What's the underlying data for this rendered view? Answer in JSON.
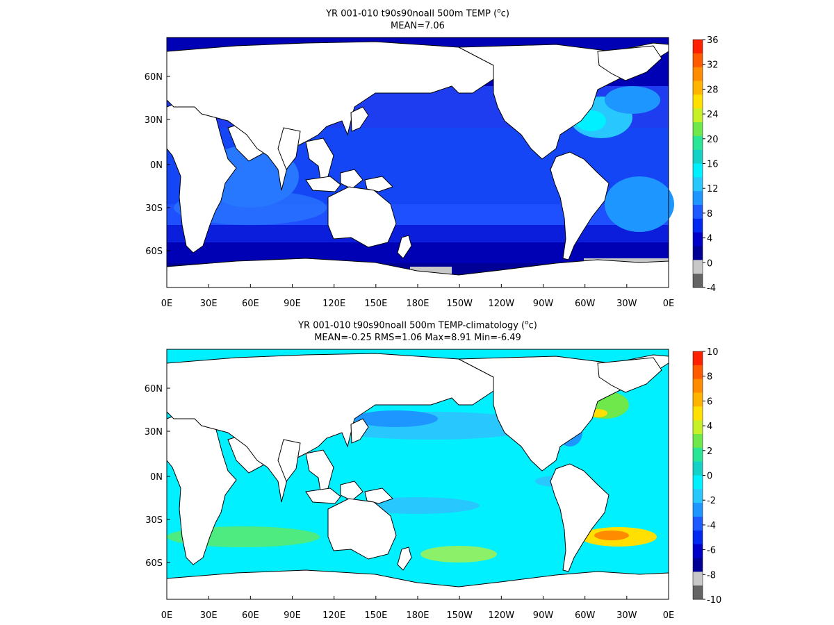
{
  "panels": [
    {
      "title_main": "YR 001-010 t90s90noall 500m TEMP (",
      "title_sup": "o",
      "title_end": "c)",
      "stats": "MEAN=7.06",
      "x_ticks": [
        "0E",
        "30E",
        "60E",
        "90E",
        "120E",
        "150E",
        "180E",
        "150W",
        "120W",
        "90W",
        "60W",
        "30W",
        "0E"
      ],
      "y_ticks": [
        "60N",
        "30N",
        "0N",
        "30S",
        "60S"
      ],
      "colorbar": {
        "labels": [
          "36",
          "32",
          "28",
          "24",
          "20",
          "16",
          "12",
          "8",
          "4",
          "0",
          "-4"
        ],
        "colors": [
          "#ff2000",
          "#ff5a00",
          "#ff8c00",
          "#ffb400",
          "#ffe000",
          "#c8f028",
          "#6ee84a",
          "#28e696",
          "#14d2c8",
          "#00f0ff",
          "#28c8ff",
          "#1e96ff",
          "#1e5aff",
          "#0028f0",
          "#0000c8",
          "#000096",
          "#c8c8c8",
          "#646464"
        ]
      }
    },
    {
      "title_main": "YR 001-010 t90s90noall 500m TEMP-climatology (",
      "title_sup": "o",
      "title_end": "c)",
      "stats": "MEAN=-0.25   RMS=1.06   Max=8.91   Min=-6.49",
      "x_ticks": [
        "0E",
        "30E",
        "60E",
        "90E",
        "120E",
        "150E",
        "180E",
        "150W",
        "120W",
        "90W",
        "60W",
        "30W",
        "0E"
      ],
      "y_ticks": [
        "60N",
        "30N",
        "0N",
        "30S",
        "60S"
      ],
      "colorbar": {
        "labels": [
          "10",
          "8",
          "6",
          "4",
          "2",
          "0",
          "-2",
          "-4",
          "-6",
          "-8",
          "-10"
        ],
        "colors": [
          "#ff2000",
          "#ff5a00",
          "#ff8c00",
          "#ffb400",
          "#ffe000",
          "#c8f028",
          "#6ee84a",
          "#28e696",
          "#14d2c8",
          "#00f0ff",
          "#28c8ff",
          "#1e96ff",
          "#1e5aff",
          "#0028f0",
          "#0000c8",
          "#000096",
          "#c8c8c8",
          "#646464"
        ]
      }
    }
  ]
}
